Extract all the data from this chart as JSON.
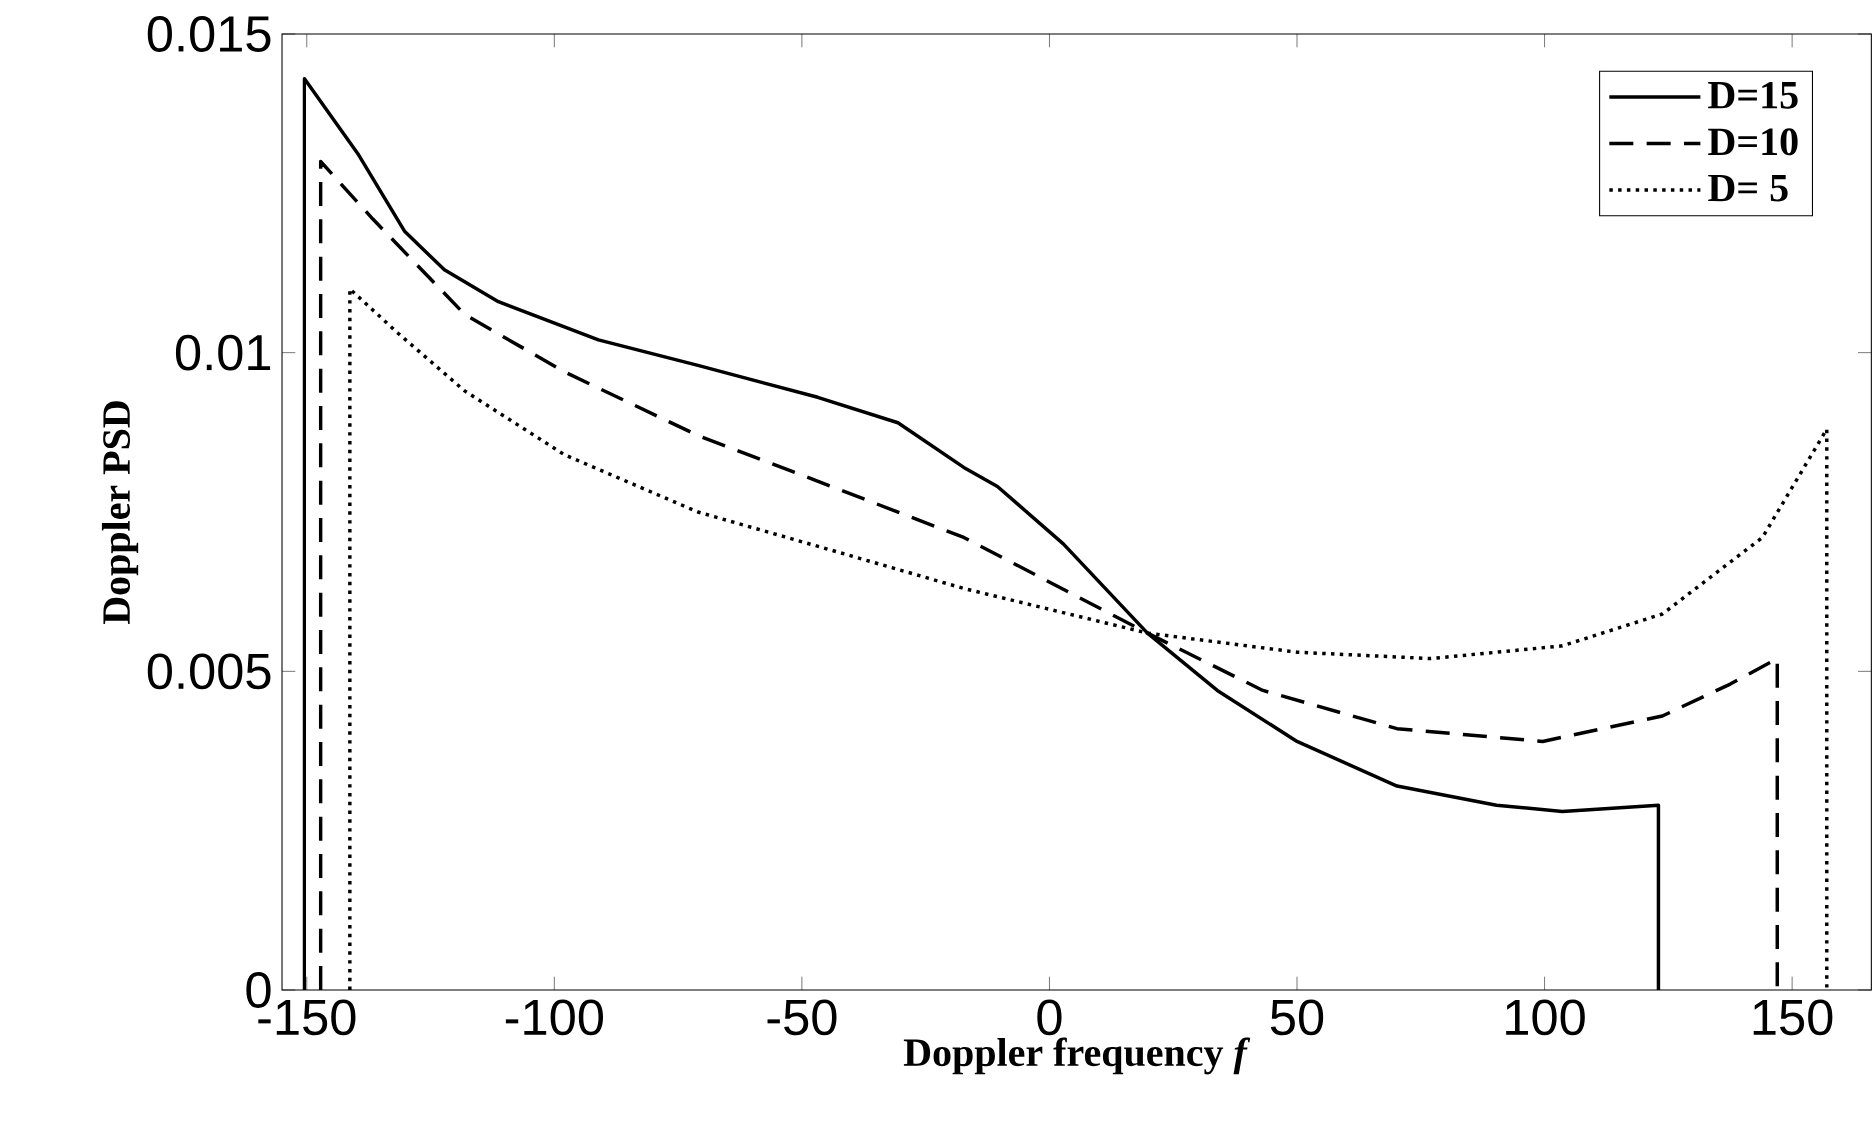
{
  "chart_data": {
    "type": "line",
    "xlabel": "Doppler frequency *f*",
    "ylabel": "Doppler PSD",
    "xlim": [
      -155,
      166
    ],
    "ylim": [
      0,
      0.015
    ],
    "xticks": [
      -150,
      -100,
      -50,
      0,
      50,
      100,
      150
    ],
    "yticks": [
      0,
      0.005,
      0.01,
      0.015
    ],
    "legend": "top right",
    "grid": false,
    "series": [
      {
        "name": "D=15",
        "color": "#000000",
        "line_style": "solid",
        "x": [
          -150.5,
          -150.5,
          -139.5,
          -130.2,
          -122.2,
          -111.3,
          -91.1,
          -71,
          -46.8,
          -30.6,
          -17.3,
          -10.5,
          2.8,
          19.8,
          33.9,
          50,
          70.2,
          90.3,
          103.6,
          123,
          123
        ],
        "values": [
          0,
          0.0143,
          0.0131,
          0.0119,
          0.0113,
          0.0108,
          0.0102,
          0.0098,
          0.0093,
          0.0089,
          0.0082,
          0.0079,
          0.007,
          0.0056,
          0.0047,
          0.0039,
          0.0032,
          0.0029,
          0.0028,
          0.0029,
          0
        ]
      },
      {
        "name": "D=10",
        "color": "#000000",
        "line_style": "dashed",
        "x": [
          -147.2,
          -147.2,
          -136.7,
          -118.1,
          -98,
          -71,
          -44,
          -17.3,
          19.8,
          43.1,
          70.2,
          99.6,
          123.8,
          137.5,
          147,
          147
        ],
        "values": [
          0,
          0.013,
          0.0121,
          0.0106,
          0.0097,
          0.0087,
          0.0079,
          0.0071,
          0.0056,
          0.0047,
          0.0041,
          0.0039,
          0.0043,
          0.0048,
          0.0052,
          0
        ]
      },
      {
        "name": "D= 5",
        "color": "#000000",
        "line_style": "dotted",
        "x": [
          -141.3,
          -141.3,
          -131.5,
          -118.1,
          -98,
          -71,
          -44,
          -17.3,
          19.8,
          50,
          77,
          103.6,
          123.8,
          144,
          157,
          157
        ],
        "values": [
          0,
          0.011,
          0.0103,
          0.0094,
          0.0084,
          0.0075,
          0.0069,
          0.0063,
          0.0056,
          0.0053,
          0.0052,
          0.0054,
          0.0059,
          0.0071,
          0.0088,
          0
        ]
      }
    ]
  }
}
